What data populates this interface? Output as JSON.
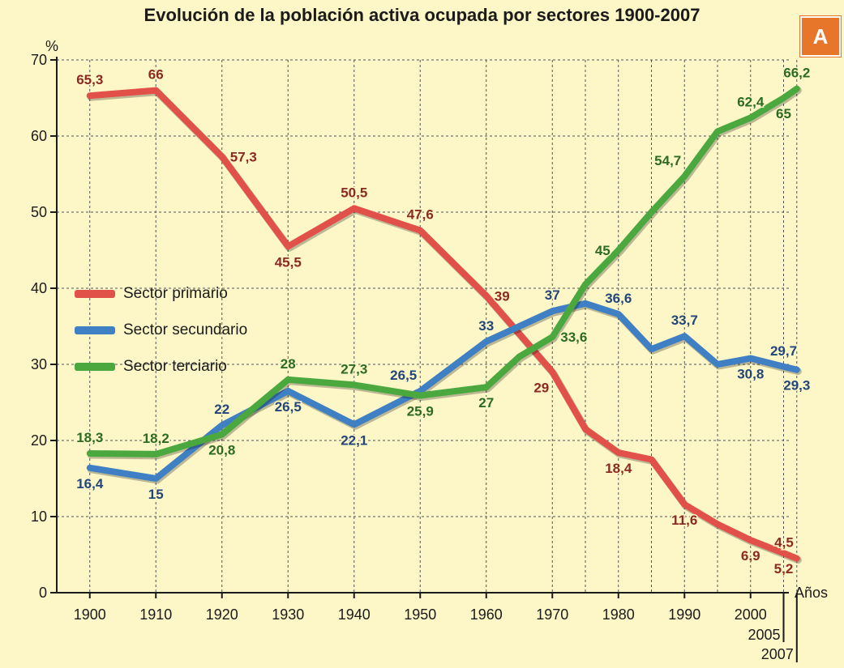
{
  "chart_data": {
    "type": "line",
    "title": "Evolución de la población activa ocupada por sectores 1900-2007",
    "badge": "A",
    "ylabel": "%",
    "xlabel": "Años",
    "ylim": [
      0,
      70
    ],
    "yticks": [
      0,
      10,
      20,
      30,
      40,
      50,
      60,
      70
    ],
    "xlim": [
      1900,
      2007
    ],
    "xticks": [
      1900,
      1910,
      1920,
      1930,
      1940,
      1950,
      1960,
      1970,
      1980,
      1990,
      2000
    ],
    "extra_xticks": [
      2005,
      2007
    ],
    "grid": true,
    "series": [
      {
        "name": "Sector primario",
        "color": "#e2504a",
        "label_color": "#8a2a22",
        "x": [
          1900,
          1910,
          1920,
          1930,
          1940,
          1950,
          1960,
          1970,
          1975,
          1980,
          1985,
          1990,
          1995,
          2000,
          2005,
          2007
        ],
        "values": [
          65.3,
          66,
          57.3,
          45.5,
          50.5,
          47.6,
          39,
          29,
          21.5,
          18.4,
          17.5,
          11.6,
          9,
          6.9,
          5.2,
          4.5
        ],
        "labels": [
          {
            "x": 1900,
            "y": 65.3,
            "text": "65,3",
            "pos": "above"
          },
          {
            "x": 1910,
            "y": 66,
            "text": "66",
            "pos": "above"
          },
          {
            "x": 1920,
            "y": 57.3,
            "text": "57,3",
            "pos": "right"
          },
          {
            "x": 1930,
            "y": 45.5,
            "text": "45,5",
            "pos": "below"
          },
          {
            "x": 1940,
            "y": 50.5,
            "text": "50,5",
            "pos": "above"
          },
          {
            "x": 1950,
            "y": 47.6,
            "text": "47,6",
            "pos": "above"
          },
          {
            "x": 1960,
            "y": 39,
            "text": "39",
            "pos": "right"
          },
          {
            "x": 1970,
            "y": 29,
            "text": "29",
            "pos": "below-left"
          },
          {
            "x": 1980,
            "y": 18.4,
            "text": "18,4",
            "pos": "below"
          },
          {
            "x": 1990,
            "y": 11.6,
            "text": "11,6",
            "pos": "below"
          },
          {
            "x": 2000,
            "y": 6.9,
            "text": "6,9",
            "pos": "below"
          },
          {
            "x": 2005,
            "y": 5.2,
            "text": "5,2",
            "pos": "below"
          },
          {
            "x": 2007,
            "y": 4.5,
            "text": "4,5",
            "pos": "above-left"
          }
        ]
      },
      {
        "name": "Sector secundario",
        "color": "#3f7fc4",
        "label_color": "#23467a",
        "x": [
          1900,
          1910,
          1920,
          1930,
          1940,
          1950,
          1960,
          1970,
          1975,
          1980,
          1985,
          1990,
          1995,
          2000,
          2005,
          2007
        ],
        "values": [
          16.4,
          15,
          22,
          26.5,
          22.1,
          26.5,
          33,
          37,
          38,
          36.6,
          32,
          33.7,
          30,
          30.8,
          29.7,
          29.3
        ],
        "labels": [
          {
            "x": 1900,
            "y": 16.4,
            "text": "16,4",
            "pos": "below"
          },
          {
            "x": 1910,
            "y": 15,
            "text": "15",
            "pos": "below"
          },
          {
            "x": 1920,
            "y": 22,
            "text": "22",
            "pos": "above"
          },
          {
            "x": 1930,
            "y": 26.5,
            "text": "26,5",
            "pos": "below"
          },
          {
            "x": 1940,
            "y": 22.1,
            "text": "22,1",
            "pos": "below"
          },
          {
            "x": 1950,
            "y": 26.5,
            "text": "26,5",
            "pos": "above-left"
          },
          {
            "x": 1960,
            "y": 33,
            "text": "33",
            "pos": "above"
          },
          {
            "x": 1970,
            "y": 37,
            "text": "37",
            "pos": "above"
          },
          {
            "x": 1980,
            "y": 36.6,
            "text": "36,6",
            "pos": "above"
          },
          {
            "x": 1990,
            "y": 33.7,
            "text": "33,7",
            "pos": "above"
          },
          {
            "x": 2000,
            "y": 30.8,
            "text": "30,8",
            "pos": "below"
          },
          {
            "x": 2005,
            "y": 29.7,
            "text": "29,7",
            "pos": "above"
          },
          {
            "x": 2007,
            "y": 29.3,
            "text": "29,3",
            "pos": "below"
          }
        ]
      },
      {
        "name": "Sector terciario",
        "color": "#4aa83f",
        "label_color": "#2d6a24",
        "x": [
          1900,
          1910,
          1920,
          1930,
          1940,
          1950,
          1960,
          1965,
          1970,
          1975,
          1980,
          1985,
          1990,
          1995,
          2000,
          2005,
          2007
        ],
        "values": [
          18.3,
          18.2,
          20.8,
          28,
          27.3,
          25.9,
          27,
          31,
          33.6,
          40.5,
          45,
          50,
          54.7,
          60.6,
          62.4,
          65,
          66.2
        ],
        "labels": [
          {
            "x": 1900,
            "y": 18.3,
            "text": "18,3",
            "pos": "above"
          },
          {
            "x": 1910,
            "y": 18.2,
            "text": "18,2",
            "pos": "above"
          },
          {
            "x": 1920,
            "y": 20.8,
            "text": "20,8",
            "pos": "below"
          },
          {
            "x": 1930,
            "y": 28,
            "text": "28",
            "pos": "above"
          },
          {
            "x": 1940,
            "y": 27.3,
            "text": "27,3",
            "pos": "above"
          },
          {
            "x": 1950,
            "y": 25.9,
            "text": "25,9",
            "pos": "below"
          },
          {
            "x": 1960,
            "y": 27,
            "text": "27",
            "pos": "below"
          },
          {
            "x": 1970,
            "y": 33.6,
            "text": "33,6",
            "pos": "right"
          },
          {
            "x": 1980,
            "y": 45,
            "text": "45",
            "pos": "left"
          },
          {
            "x": 1990,
            "y": 54.7,
            "text": "54,7",
            "pos": "above-left"
          },
          {
            "x": 2000,
            "y": 62.4,
            "text": "62,4",
            "pos": "above"
          },
          {
            "x": 2005,
            "y": 65,
            "text": "65",
            "pos": "below"
          },
          {
            "x": 2007,
            "y": 66.2,
            "text": "66,2",
            "pos": "above"
          }
        ]
      }
    ]
  }
}
